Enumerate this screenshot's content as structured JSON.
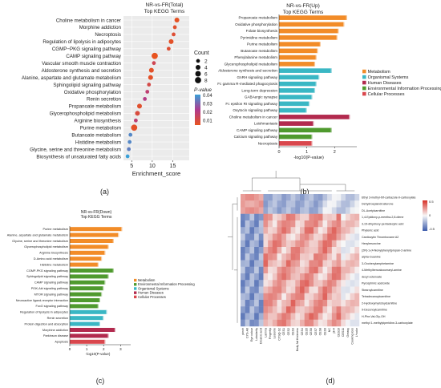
{
  "panel_labels": [
    "(a)",
    "(b)",
    "(c)",
    "(d)"
  ],
  "colors": {
    "metabolism": "#f28c28",
    "organismal": "#3ab7c4",
    "human_diseases": "#b22a4e",
    "environmental": "#4f9a2e",
    "cellular": "#d9474d",
    "heat_low": "#3b5bab",
    "heat_mid": "#f7f7f7",
    "heat_high": "#d73027"
  },
  "chart_data": [
    {
      "id": "a",
      "type": "scatter",
      "title": "NR-vs-FR(Total)",
      "subtitle": "Top KEGG Terms",
      "xlabel": "Enrichment_score",
      "xlim": [
        3,
        19
      ],
      "xticks": [
        5,
        10,
        15
      ],
      "categories": [
        "Choline metabolism in cancer",
        "Morphine addiction",
        "Necroptosis",
        "Regulation of lipolysis in adipocytes",
        "CGMP−PKG signaling pathway",
        "CAMP signaling pathway",
        "Vascular smooth muscle contraction",
        "Aldosterone synthesis and secretion",
        "Alanine, aspartate and glutamate metabolism",
        "Sphingolipid signaling pathway",
        "Oxidative phosphorylation",
        "Renin secretion",
        "Propanoate metabolism",
        "Glycerophospholipid metabolism",
        "Arginine biosynthesis",
        "Purine metabolism",
        "Butanoate metabolism",
        "Histidine metabolism",
        "Glycine, serine and threonine metabolism",
        "Biosynthesis of unsaturated fatty acids"
      ],
      "x": [
        16.0,
        15.5,
        15.2,
        14.6,
        14.0,
        10.6,
        10.4,
        9.8,
        9.6,
        9.2,
        8.8,
        8.2,
        6.9,
        6.4,
        6.0,
        5.6,
        4.7,
        4.5,
        4.3,
        4.0
      ],
      "count": [
        4,
        2,
        2,
        4,
        2,
        8,
        2,
        4,
        4,
        2,
        2,
        2,
        4,
        4,
        2,
        8,
        2,
        2,
        2,
        2
      ],
      "pvalue": [
        0.003,
        0.005,
        0.006,
        0.004,
        0.006,
        0.002,
        0.012,
        0.004,
        0.004,
        0.01,
        0.018,
        0.022,
        0.005,
        0.008,
        0.018,
        0.004,
        0.04,
        0.04,
        0.038,
        0.045
      ],
      "legend_count_title": "Count",
      "legend_count_values": [
        2,
        4,
        6,
        8
      ],
      "legend_p_title": "P-value",
      "legend_p_values": [
        "0.04",
        "0.03",
        "0.02",
        "0.01"
      ]
    },
    {
      "id": "b",
      "type": "bar",
      "orientation": "horizontal",
      "title": "NR-vs-FR(Up)",
      "subtitle": "Top KEGG Terms",
      "xlabel": "-log10(P-value)",
      "xlim": [
        0,
        2.8
      ],
      "xticks": [
        0,
        1,
        2
      ],
      "categories": [
        "Propanoate metabolism",
        "Oxidative phosphorylation",
        "Folate biosynthesis",
        "Pyrimidine metabolism",
        "Purine metabolism",
        "Butanoate metabolism",
        "Phenylalanine metabolism",
        "Glycerophospholipid metabolism",
        "Aldosterone synthesis and secretion",
        "GnRH signaling pathway",
        "Fc gamma R-mediated phagocytosis",
        "Long-term depression",
        "GABAergic synapse",
        "Fc epsilon RI signaling pathway",
        "Oxytocin signaling pathway",
        "Choline metabolism in cancer",
        "Leishmaniasis",
        "CAMP signaling pathway",
        "Calcium signaling pathway",
        "Necroptosis"
      ],
      "values": [
        2.45,
        2.35,
        2.15,
        2.1,
        1.5,
        1.4,
        1.35,
        1.3,
        1.9,
        1.45,
        1.35,
        1.3,
        1.2,
        1.1,
        1.0,
        2.55,
        1.25,
        1.9,
        1.2,
        1.2
      ],
      "groups": [
        "metabolism",
        "metabolism",
        "metabolism",
        "metabolism",
        "metabolism",
        "metabolism",
        "metabolism",
        "metabolism",
        "organismal",
        "organismal",
        "organismal",
        "organismal",
        "organismal",
        "organismal",
        "organismal",
        "human_diseases",
        "human_diseases",
        "environmental",
        "environmental",
        "cellular"
      ],
      "legend": [
        "Metabolism",
        "Organismal Systems",
        "Human Diseases",
        "Environmental Information Processing",
        "Cellular Processes"
      ]
    },
    {
      "id": "c",
      "type": "bar",
      "orientation": "horizontal",
      "title": "NR-vs-FR(Down)",
      "subtitle": "Top KEGG Terms",
      "xlabel": "-log10(P-value)",
      "xlim": [
        0,
        3.6
      ],
      "xticks": [
        0,
        1,
        2,
        3
      ],
      "categories": [
        "Purine metabolism",
        "Alanine, aspartate and glutamate metabolism",
        "Glycine, serine and threonine metabolism",
        "Glycerophospholipid metabolism",
        "Arginine biosynthesis",
        "D-Amino acid metabolism",
        "Histidine metabolism",
        "CGMP-PKG signaling pathway",
        "Sphingolipid signaling pathway",
        "CAMP signaling pathway",
        "PI3K-Akt signaling pathway",
        "MTOR signaling pathway",
        "Neuroactive ligand-receptor interaction",
        "FoxO signaling pathway",
        "Regulation of lipolysis in adipocytes",
        "Renin secretion",
        "Protein digestion and absorption",
        "Morphine addiction",
        "Parkinson disease",
        "Apoptosis"
      ],
      "values": [
        3.1,
        2.9,
        2.6,
        2.3,
        2.1,
        1.9,
        1.7,
        2.6,
        2.3,
        2.1,
        2.0,
        1.9,
        1.8,
        1.7,
        2.2,
        2.0,
        1.8,
        2.7,
        2.3,
        2.1
      ],
      "groups": [
        "metabolism",
        "metabolism",
        "metabolism",
        "metabolism",
        "metabolism",
        "metabolism",
        "metabolism",
        "environmental",
        "environmental",
        "environmental",
        "environmental",
        "environmental",
        "environmental",
        "environmental",
        "organismal",
        "organismal",
        "organismal",
        "human_diseases",
        "human_diseases",
        "cellular"
      ],
      "legend": [
        "Metabolism",
        "Environmental Information Processing",
        "Organismal Systems",
        "Human Diseases",
        "Cellular Processes"
      ]
    },
    {
      "id": "d",
      "type": "heatmap",
      "rows": [
        "Ethyl 3-methyl-thf-carbazole-9-carboxylate",
        "Dehydroepiandrosterone",
        "DL-Acetylcarnitine",
        "1,4-Epidioxy-p-mentha-2,8-diene",
        "3,15-dihydroxy-pentadecylic acid",
        "Phytenic acid",
        "Cardiocytin Thromboxane A2",
        "Hexylresorcine",
        "(2R)-1-(4-Nonylphenyl)propan-2-amine",
        "alpha-Guanine",
        "3-Oxohexylamphetamine",
        "4-Methylbenzalcoumaryl-amine",
        "decyl octenoate",
        "Pyrosphinic acetoxide",
        "Stearoylcarnitine",
        "Tetradecanoylcarnitine",
        "2-Hydroxymyristoylcarnitine",
        "9-Decenoylcarnitine",
        "H-Phe-Val-Gly-OH",
        "methyl 1-methylpiperidine-3-carboxylate"
      ],
      "columns": [
        "pinch",
        "CYS-A6",
        "Eye colour",
        "Lobularity",
        "Dicalcic acid",
        "Lamina",
        "Fingertip",
        "Lesionle",
        "CYSQ-S2",
        "CES1",
        "CES2",
        "CES3",
        "Body fat thickness",
        "CES4",
        "CES5",
        "CES6",
        "CES7",
        "CES8",
        "CES9",
        "NC",
        "pH4",
        "CES10",
        "CES11",
        "Greasy",
        "Cooking loss",
        "L*color"
      ],
      "scale_ticks": [
        "0.5",
        "0",
        "-0.5"
      ]
    }
  ]
}
